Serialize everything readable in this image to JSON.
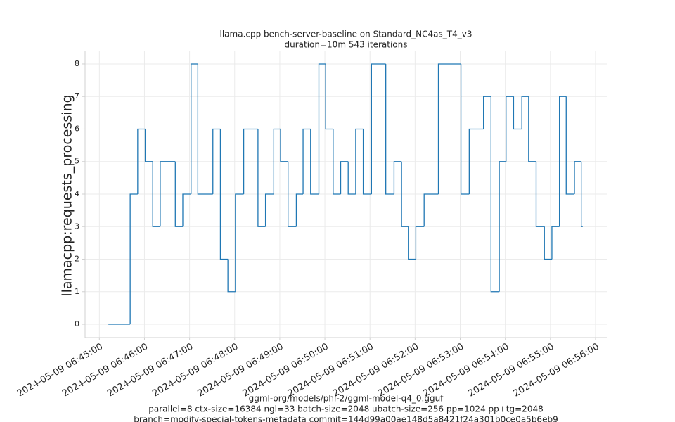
{
  "chart_data": {
    "type": "line",
    "step": "post",
    "title": "llama.cpp bench-server-baseline on Standard_NC4as_T4_v3",
    "subtitle": "duration=10m 543 iterations",
    "ylabel": "llamacpp:requests_processing",
    "xlabel": [
      "ggml-org/models/phi-2/ggml-model-q4_0.gguf",
      "parallel=8 ctx-size=16384 ngl=33 batch-size=2048 ubatch-size=256 pp=1024 pp+tg=2048",
      "branch=modify-special-tokens-metadata commit=144d99a00ae148d5a8421f24a301b0ce0a5b6eb9"
    ],
    "x": [
      "2024-05-09 06:45:12",
      "2024-05-09 06:45:41",
      "2024-05-09 06:45:51",
      "2024-05-09 06:46:01",
      "2024-05-09 06:46:11",
      "2024-05-09 06:46:21",
      "2024-05-09 06:46:41",
      "2024-05-09 06:46:51",
      "2024-05-09 06:47:02",
      "2024-05-09 06:47:11",
      "2024-05-09 06:47:31",
      "2024-05-09 06:47:41",
      "2024-05-09 06:47:51",
      "2024-05-09 06:48:01",
      "2024-05-09 06:48:12",
      "2024-05-09 06:48:31",
      "2024-05-09 06:48:41",
      "2024-05-09 06:48:52",
      "2024-05-09 06:49:01",
      "2024-05-09 06:49:11",
      "2024-05-09 06:49:22",
      "2024-05-09 06:49:31",
      "2024-05-09 06:49:41",
      "2024-05-09 06:49:52",
      "2024-05-09 06:50:01",
      "2024-05-09 06:50:11",
      "2024-05-09 06:50:21",
      "2024-05-09 06:50:31",
      "2024-05-09 06:50:41",
      "2024-05-09 06:50:51",
      "2024-05-09 06:51:02",
      "2024-05-09 06:51:21",
      "2024-05-09 06:51:32",
      "2024-05-09 06:51:42",
      "2024-05-09 06:51:51",
      "2024-05-09 06:52:01",
      "2024-05-09 06:52:12",
      "2024-05-09 06:52:31",
      "2024-05-09 06:53:01",
      "2024-05-09 06:53:12",
      "2024-05-09 06:53:31",
      "2024-05-09 06:53:41",
      "2024-05-09 06:53:52",
      "2024-05-09 06:54:01",
      "2024-05-09 06:54:11",
      "2024-05-09 06:54:22",
      "2024-05-09 06:54:31",
      "2024-05-09 06:54:41",
      "2024-05-09 06:54:52",
      "2024-05-09 06:55:02",
      "2024-05-09 06:55:12",
      "2024-05-09 06:55:21",
      "2024-05-09 06:55:32",
      "2024-05-09 06:55:41",
      "2024-05-09 06:55:43"
    ],
    "values": [
      0,
      4,
      6,
      5,
      3,
      5,
      3,
      4,
      8,
      4,
      6,
      2,
      1,
      4,
      6,
      3,
      4,
      6,
      5,
      3,
      4,
      6,
      4,
      8,
      6,
      4,
      5,
      4,
      6,
      4,
      8,
      4,
      5,
      3,
      2,
      3,
      4,
      8,
      4,
      6,
      7,
      1,
      5,
      7,
      6,
      7,
      5,
      3,
      2,
      3,
      7,
      4,
      5,
      3,
      3
    ],
    "color": "#1f77b4",
    "xlim": [
      "2024-05-09 06:44:41",
      "2024-05-09 06:56:15"
    ],
    "xticks": [
      "2024-05-09 06:45:00",
      "2024-05-09 06:46:00",
      "2024-05-09 06:47:00",
      "2024-05-09 06:48:00",
      "2024-05-09 06:49:00",
      "2024-05-09 06:50:00",
      "2024-05-09 06:51:00",
      "2024-05-09 06:52:00",
      "2024-05-09 06:53:00",
      "2024-05-09 06:54:00",
      "2024-05-09 06:55:00",
      "2024-05-09 06:56:00"
    ],
    "ylim": [
      -0.41,
      8.41
    ],
    "yticks": [
      0,
      1,
      2,
      3,
      4,
      5,
      6,
      7,
      8
    ],
    "grid": true
  }
}
